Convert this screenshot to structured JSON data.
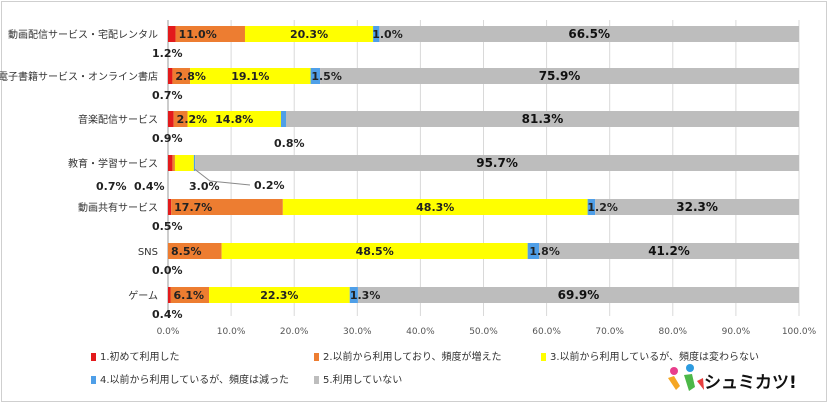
{
  "chart_data": {
    "type": "bar",
    "orientation": "horizontal",
    "stacked": true,
    "categories": [
      "動画配信サービス・宅配レンタル",
      "電子書籍サービス・オンライン書店",
      "音楽配信サービス",
      "教育・学習サービス",
      "動画共有サービス",
      "SNS",
      "ゲーム"
    ],
    "series": [
      {
        "name": "1.初めて利用した",
        "color": "#e31a1c",
        "values": [
          1.2,
          0.7,
          0.9,
          0.7,
          0.5,
          0.0,
          0.4
        ],
        "labels": [
          "1.2%",
          "0.7%",
          "0.9%",
          "0.7%",
          "0.5%",
          "0.0%",
          "0.4%"
        ]
      },
      {
        "name": "2.以前から利用しており、頻度が増えた",
        "color": "#ed7d31",
        "values": [
          11.0,
          2.8,
          2.2,
          0.4,
          17.7,
          8.5,
          6.1
        ],
        "labels": [
          "11.0%",
          "2.8%",
          "2.2%",
          "0.4%",
          "17.7%",
          "8.5%",
          "6.1%"
        ]
      },
      {
        "name": "3.以前から利用しているが、頻度は変わらない",
        "color": "#ffff00",
        "values": [
          20.3,
          19.1,
          14.8,
          3.0,
          48.3,
          48.5,
          22.3
        ],
        "labels": [
          "20.3%",
          "19.1%",
          "14.8%",
          "3.0%",
          "48.3%",
          "48.5%",
          "22.3%"
        ]
      },
      {
        "name": "4.以前から利用しているが、頻度は減った",
        "color": "#4f9fe8",
        "values": [
          1.0,
          1.5,
          0.8,
          0.2,
          1.2,
          1.8,
          1.3
        ],
        "labels": [
          "1.0%",
          "1.5%",
          "0.8%",
          "0.2%",
          "1.2%",
          "1.8%",
          "1.3%"
        ]
      },
      {
        "name": "5.利用していない",
        "color": "#bdbdbd",
        "values": [
          66.5,
          75.9,
          81.3,
          95.7,
          32.3,
          41.2,
          69.9
        ],
        "labels": [
          "66.5%",
          "75.9%",
          "81.3%",
          "95.7%",
          "32.3%",
          "41.2%",
          "69.9%"
        ]
      }
    ],
    "xlim": [
      0,
      100
    ],
    "x_ticks": [
      "0.0%",
      "10.0%",
      "20.0%",
      "30.0%",
      "40.0%",
      "50.0%",
      "60.0%",
      "70.0%",
      "80.0%",
      "90.0%",
      "100.0%"
    ],
    "grid": true,
    "legend_position": "bottom"
  },
  "logo": {
    "text": "シュミカツ!"
  }
}
